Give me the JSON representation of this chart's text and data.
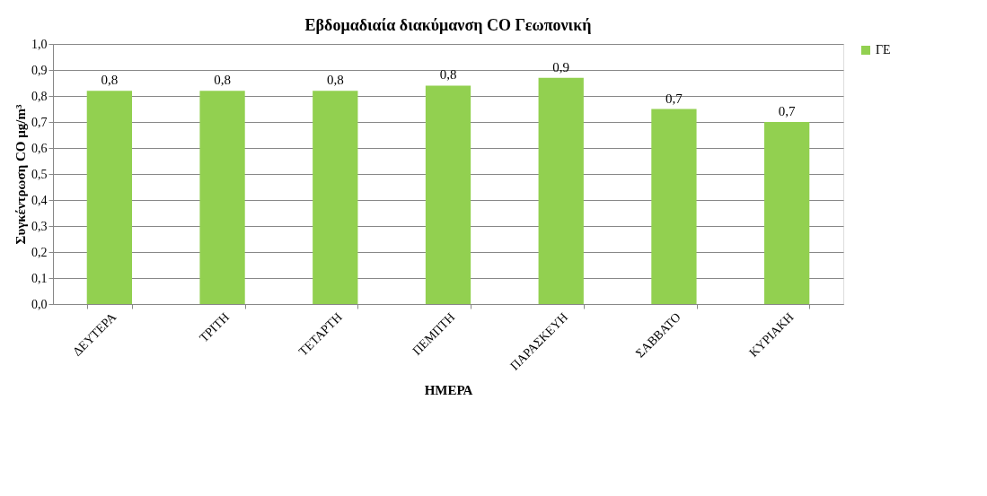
{
  "chart_data": {
    "type": "bar",
    "title": "Εβδομαδιαία διακύμανση CO Γεωπονική",
    "xlabel": "ΗΜΕΡΑ",
    "ylabel": "Συγκέντρωση CO μg/m³",
    "categories": [
      "ΔΕΥΤΕΡΑ",
      "ΤΡΙΤΗ",
      "ΤΕΤΑΡΤΗ",
      "ΠΕΜΠΤΗ",
      "ΠΑΡΑΣΚΕΥΗ",
      "ΣΑΒΒΑΤΟ",
      "ΚΥΡΙΑΚΗ"
    ],
    "series": [
      {
        "name": "ΓΕ",
        "color": "#92d050",
        "values": [
          0.82,
          0.82,
          0.82,
          0.84,
          0.87,
          0.75,
          0.7
        ],
        "value_labels": [
          "0,8",
          "0,8",
          "0,8",
          "0,8",
          "0,9",
          "0,7",
          "0,7"
        ]
      }
    ],
    "ylim": [
      0,
      1
    ],
    "yticks": [
      {
        "value": 0,
        "label": "0,0"
      },
      {
        "value": 0.1,
        "label": "0,1"
      },
      {
        "value": 0.2,
        "label": "0,2"
      },
      {
        "value": 0.3,
        "label": "0,3"
      },
      {
        "value": 0.4,
        "label": "0,4"
      },
      {
        "value": 0.5,
        "label": "0,5"
      },
      {
        "value": 0.6,
        "label": "0,6"
      },
      {
        "value": 0.7,
        "label": "0,7"
      },
      {
        "value": 0.8,
        "label": "0,8"
      },
      {
        "value": 0.9,
        "label": "0,9"
      },
      {
        "value": 1,
        "label": "1,0"
      }
    ],
    "grid": "y",
    "legend": "right"
  }
}
